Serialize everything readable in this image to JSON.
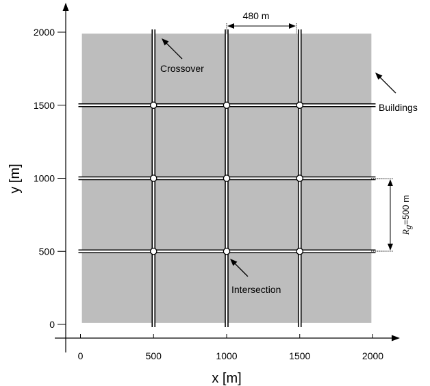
{
  "chart_data": {
    "type": "diagram",
    "xlabel": "x [m]",
    "ylabel": "y [m]",
    "x_ticks": [
      0,
      500,
      1000,
      1500,
      2000
    ],
    "y_ticks": [
      0,
      500,
      1000,
      1500,
      2000
    ],
    "x_tick_labels": [
      "0",
      "500",
      "1000",
      "1500",
      "2000"
    ],
    "y_tick_labels": [
      "0",
      "500",
      "1000",
      "1500",
      "2000"
    ],
    "grid_spacing_m": 500,
    "building_size_m": 480,
    "roads_x": [
      500,
      1000,
      1500
    ],
    "roads_y": [
      500,
      1000,
      1500
    ],
    "intersections": [
      [
        500,
        500
      ],
      [
        1000,
        500
      ],
      [
        1500,
        500
      ],
      [
        500,
        1000
      ],
      [
        1000,
        1000
      ],
      [
        1500,
        1000
      ],
      [
        500,
        1500
      ],
      [
        1000,
        1500
      ],
      [
        1500,
        1500
      ]
    ],
    "colors": {
      "building": "#bdbdbd",
      "road": "#000000",
      "background": "#ffffff"
    }
  },
  "annotations": {
    "building_width": "480 m",
    "crossover": "Crossover",
    "buildings": "Buildings",
    "intersection": "Intersection",
    "grid_spacing_symbol": "R",
    "grid_spacing_subscript": "g",
    "grid_spacing_value": "=500 m"
  }
}
